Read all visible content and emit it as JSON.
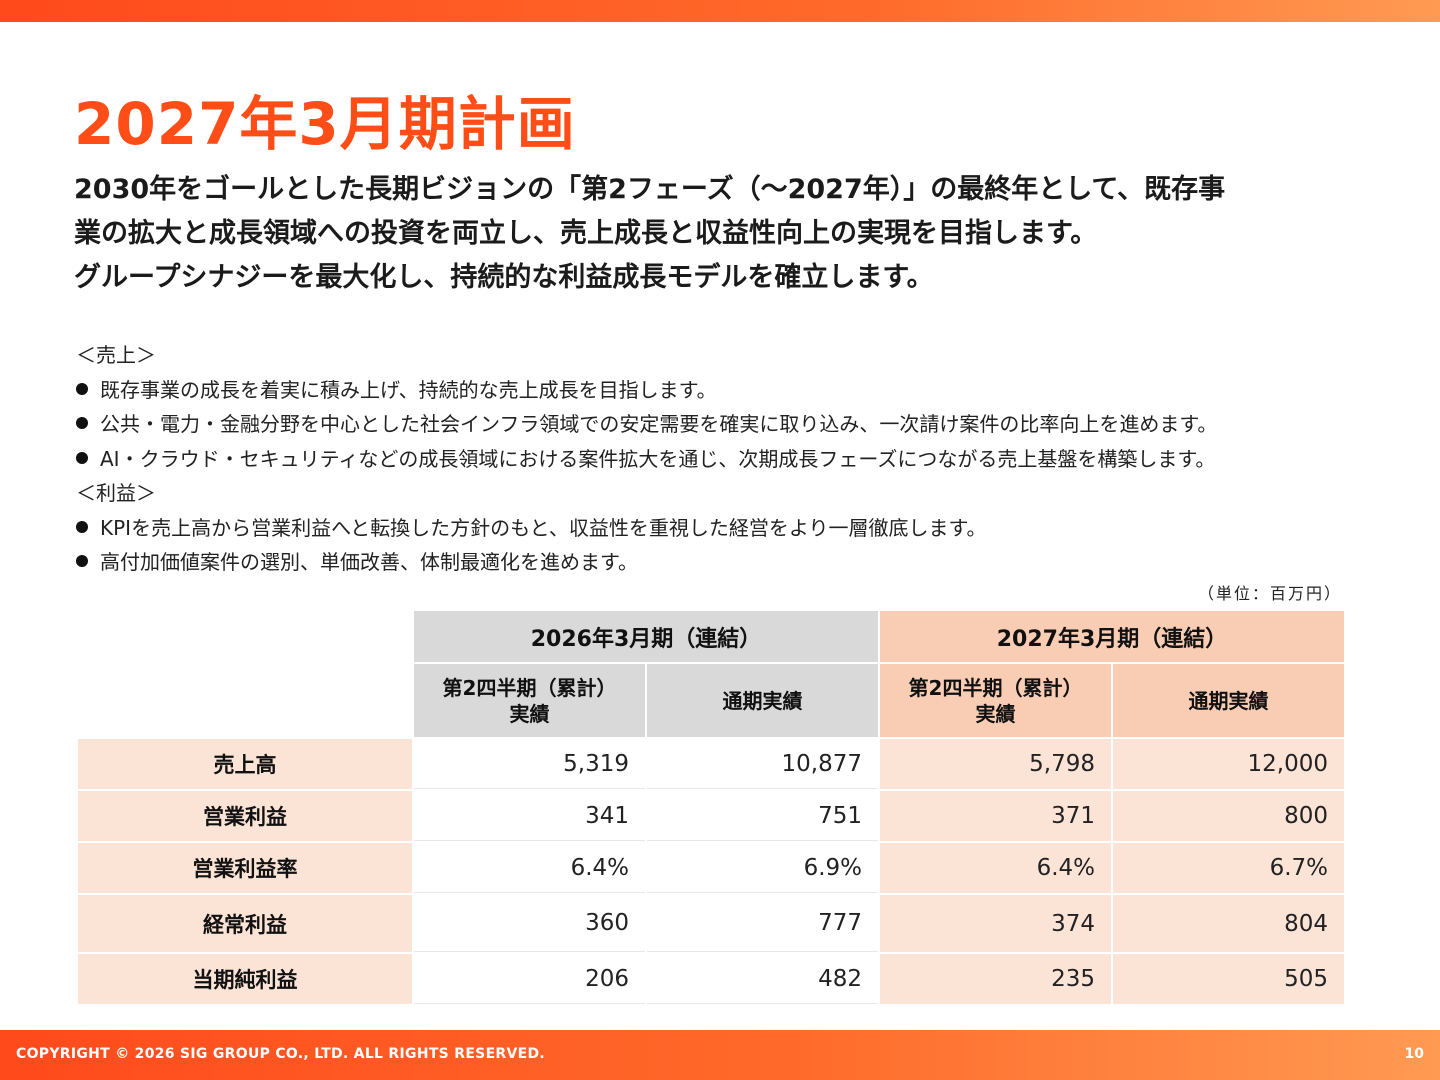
{
  "page": {
    "title": "2027年3月期計画",
    "lead": [
      "2030年をゴールとした長期ビジョンの「第2フェーズ（～2027年）」の最終年として、既存事",
      "業の拡大と成長領域への投資を両立し、売上成長と収益性向上の実現を目指します。",
      "グループシナジーを最大化し、持続的な利益成長モデルを確立します。"
    ],
    "sales_heading": "＜売上＞",
    "sales_bullets": [
      "既存事業の成長を着実に積み上げ、持続的な売上成長を目指します。",
      "公共・電力・金融分野を中心とした社会インフラ領域での安定需要を確実に取り込み、一次請け案件の比率向上を進めます。",
      "AI・クラウド・セキュリティなどの成長領域における案件拡大を通じ、次期成長フェーズにつながる売上基盤を構築します。"
    ],
    "profit_heading": "＜利益＞",
    "profit_bullets": [
      "KPIを売上高から営業利益へと転換した方針のもと、収益性を重視した経営をより一層徹底します。",
      "高付加価値案件の選別、単価改善、体制最適化を進めます。"
    ],
    "unit_note": "（単位：百万円）"
  },
  "table": {
    "period_headers": [
      "2026年3月期（連結）",
      "2027年3月期（連結）"
    ],
    "sub_headers": [
      [
        "第2四半期（累計）",
        "実績"
      ],
      [
        "通期実績"
      ],
      [
        "第2四半期（累計）",
        "実績"
      ],
      [
        "通期実績"
      ]
    ],
    "rows": [
      {
        "label": "売上高",
        "values": [
          "5,319",
          "10,877",
          "5,798",
          "12,000"
        ]
      },
      {
        "label": "営業利益",
        "values": [
          "341",
          "751",
          "371",
          "800"
        ]
      },
      {
        "label": "営業利益率",
        "values": [
          "6.4%",
          "6.9%",
          "6.4%",
          "6.7%"
        ]
      },
      {
        "label": "経常利益",
        "values": [
          "360",
          "777",
          "374",
          "804"
        ]
      },
      {
        "label": "当期純利益",
        "values": [
          "206",
          "482",
          "235",
          "505"
        ]
      }
    ]
  },
  "footer": {
    "copyright": "COPYRIGHT © 2026 SIG GROUP CO., LTD. ALL RIGHTS RESERVED.",
    "page_number": "10"
  },
  "colors": {
    "accent": "#ff4d17",
    "header_gray": "#d9d9d9",
    "header_peach": "#f8cdb3",
    "cell_peach": "#fbe3d6"
  }
}
